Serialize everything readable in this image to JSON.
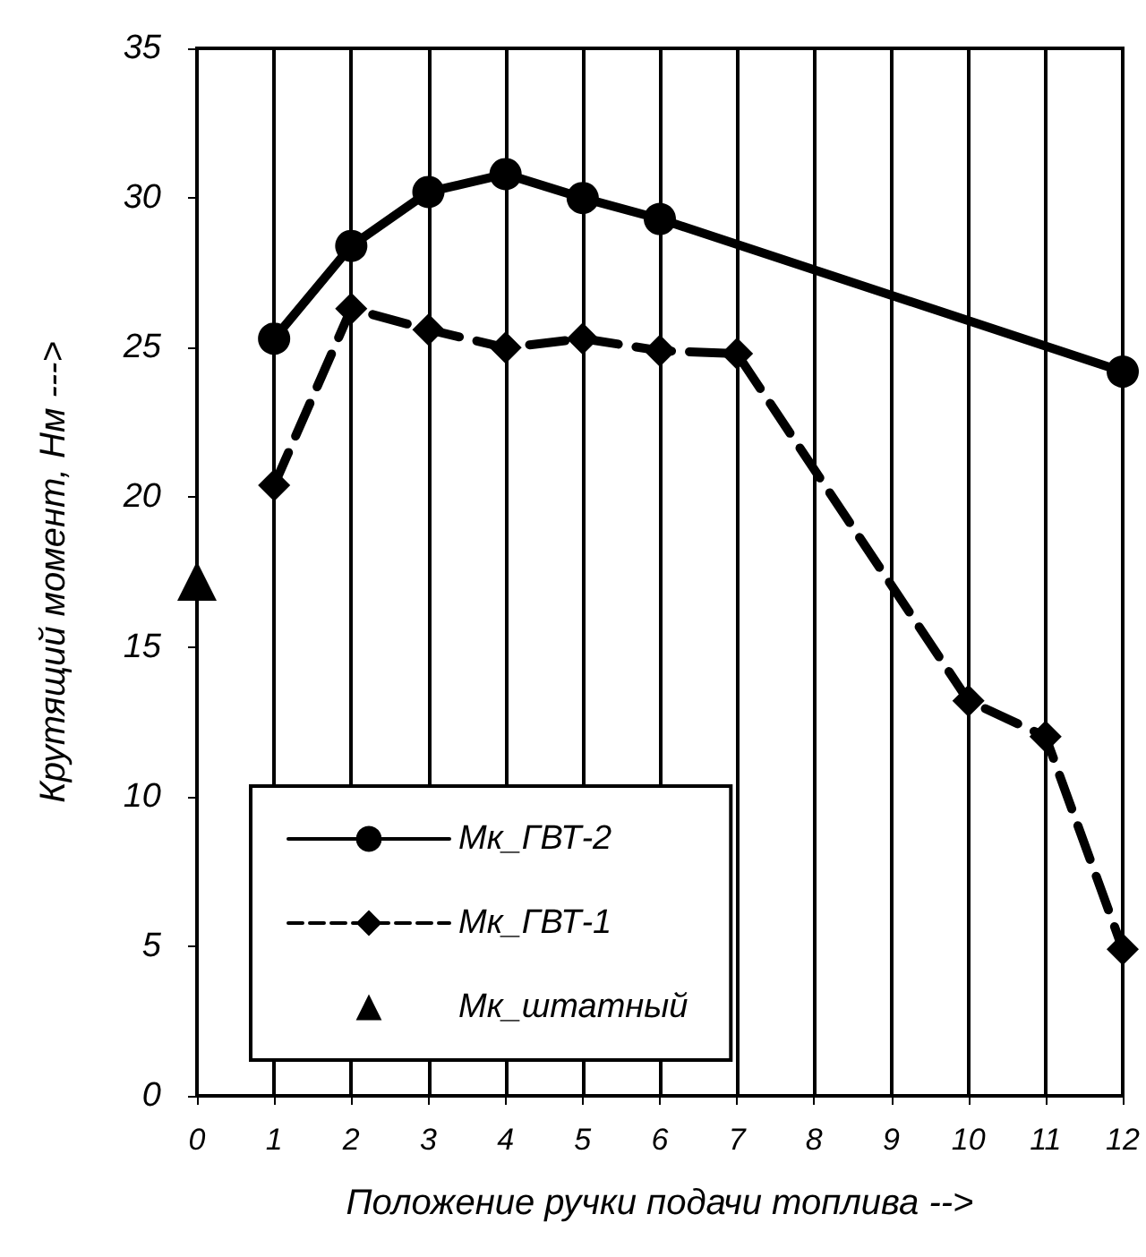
{
  "chart_data": {
    "type": "line",
    "xlabel": "Положение ручки подачи топлива -->",
    "ylabel": "Крутящий момент, Нм --->",
    "xlim": [
      0,
      12
    ],
    "xticks": [
      0,
      1,
      2,
      3,
      4,
      5,
      6,
      7,
      8,
      9,
      10,
      11,
      12
    ],
    "ylim": [
      0,
      35
    ],
    "yticks": [
      0,
      5,
      10,
      15,
      20,
      25,
      30,
      35
    ],
    "grid": "x",
    "legend": "bottom left",
    "series": [
      {
        "name": "Мк_ГВТ-2",
        "color": "#000000",
        "marker": "circle",
        "line_style": "solid",
        "x": [
          1,
          2,
          3,
          4,
          5,
          6,
          12
        ],
        "values": [
          25.3,
          28.4,
          30.2,
          30.8,
          30.0,
          29.3,
          24.2
        ]
      },
      {
        "name": "Мк_ГВТ-1",
        "color": "#000000",
        "marker": "diamond",
        "line_style": "dashed",
        "x": [
          1,
          2,
          3,
          4,
          5,
          6,
          7,
          10,
          11,
          12
        ],
        "values": [
          20.4,
          26.3,
          25.6,
          25.0,
          25.3,
          24.9,
          24.8,
          13.2,
          12.0,
          4.9
        ]
      },
      {
        "name": "Мк_штатный",
        "type": "scatter",
        "color": "#000000",
        "marker": "triangle",
        "x": [
          0
        ],
        "values": [
          17.2
        ]
      }
    ]
  }
}
